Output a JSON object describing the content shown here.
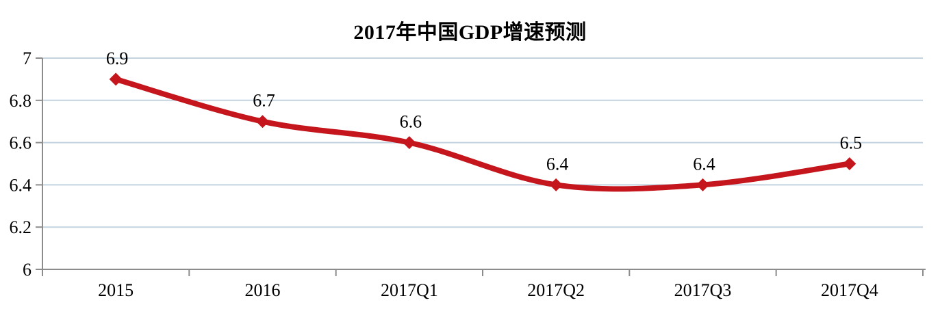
{
  "chart_data": {
    "type": "line",
    "title": "2017年中国GDP增速预测",
    "categories": [
      "2015",
      "2016",
      "2017Q1",
      "2017Q2",
      "2017Q3",
      "2017Q4"
    ],
    "values": [
      6.9,
      6.7,
      6.6,
      6.4,
      6.4,
      6.5
    ],
    "data_labels": [
      "6.9",
      "6.7",
      "6.6",
      "6.4",
      "6.4",
      "6.5"
    ],
    "xlabel": "",
    "ylabel": "",
    "ylim": [
      6,
      7
    ],
    "y_ticks": [
      7,
      6.8,
      6.6,
      6.4,
      6.2,
      6
    ],
    "y_tick_labels": [
      "7",
      "6.8",
      "6.6",
      "6.4",
      "6.2",
      "6"
    ],
    "grid": "horizontal-only",
    "legend": "none",
    "line_smoothing": true,
    "marker_shape": "diamond",
    "colors": {
      "line": "#C4161C",
      "marker": "#C4161C",
      "gridline": "#C3D3E0",
      "axis": "#8C8C8C",
      "text": "#000000",
      "background": "#FFFFFF"
    }
  }
}
